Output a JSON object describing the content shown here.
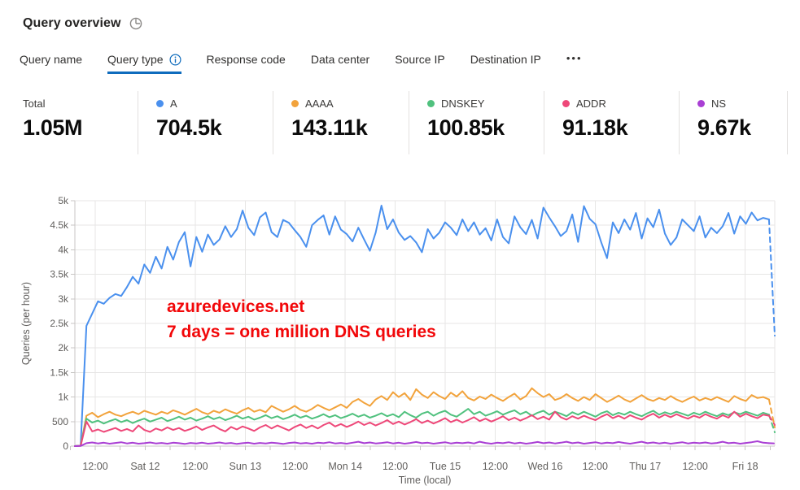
{
  "header": {
    "title": "Query overview"
  },
  "tabs": {
    "items": [
      {
        "label": "Query name",
        "selected": false
      },
      {
        "label": "Query type",
        "selected": true,
        "info_icon": true
      },
      {
        "label": "Response code",
        "selected": false
      },
      {
        "label": "Data center",
        "selected": false
      },
      {
        "label": "Source IP",
        "selected": false
      },
      {
        "label": "Destination IP",
        "selected": false
      }
    ],
    "more_label": "•••",
    "selected_underline_color": "#0f6cbd"
  },
  "stats": {
    "columns": [
      {
        "label": "Total",
        "value": "1.05M",
        "color": null
      },
      {
        "label": "A",
        "value": "704.5k",
        "color": "#4a90ee"
      },
      {
        "label": "AAAA",
        "value": "143.11k",
        "color": "#f2a33c"
      },
      {
        "label": "DNSKEY",
        "value": "100.85k",
        "color": "#50c17e"
      },
      {
        "label": "ADDR",
        "value": "91.18k",
        "color": "#ee4879"
      },
      {
        "label": "NS",
        "value": "9.67k",
        "color": "#a93fd4"
      }
    ]
  },
  "chart_data": {
    "type": "line",
    "title": "",
    "xlabel": "Time (local)",
    "ylabel": "Queries (per hour)",
    "ylim": [
      0,
      5000
    ],
    "y_ticks": [
      "0",
      "500",
      "1k",
      "1.5k",
      "2k",
      "2.5k",
      "3k",
      "3.5k",
      "4k",
      "4.5k",
      "5k"
    ],
    "x_ticks": [
      "12:00",
      "Sat 12",
      "12:00",
      "Sun 13",
      "12:00",
      "Mon 14",
      "12:00",
      "Tue 15",
      "12:00",
      "Wed 16",
      "12:00",
      "Thu 17",
      "12:00",
      "Fri 18"
    ],
    "grid": true,
    "legend_position": "top-stats-row",
    "last_segment_dashed": true,
    "annotation": {
      "lines": [
        "azuredevices.net",
        "7 days = one million DNS queries"
      ],
      "color": "#f20709"
    },
    "series": [
      {
        "name": "A",
        "color": "#4a90ee",
        "values": [
          0,
          20,
          2450,
          2700,
          2950,
          2900,
          3020,
          3100,
          3060,
          3240,
          3450,
          3310,
          3700,
          3530,
          3860,
          3620,
          4060,
          3800,
          4160,
          4360,
          3660,
          4260,
          3960,
          4310,
          4100,
          4210,
          4480,
          4260,
          4420,
          4800,
          4450,
          4300,
          4660,
          4760,
          4360,
          4260,
          4610,
          4550,
          4400,
          4260,
          4060,
          4500,
          4610,
          4700,
          4310,
          4680,
          4410,
          4320,
          4170,
          4450,
          4210,
          3980,
          4350,
          4900,
          4420,
          4620,
          4350,
          4200,
          4280,
          4150,
          3950,
          4420,
          4230,
          4350,
          4560,
          4450,
          4300,
          4620,
          4380,
          4560,
          4310,
          4440,
          4190,
          4620,
          4260,
          4130,
          4680,
          4460,
          4320,
          4610,
          4230,
          4860,
          4660,
          4480,
          4280,
          4380,
          4720,
          4160,
          4890,
          4630,
          4520,
          4150,
          3830,
          4560,
          4340,
          4620,
          4410,
          4750,
          4230,
          4640,
          4460,
          4820,
          4330,
          4100,
          4250,
          4620,
          4500,
          4380,
          4680,
          4250,
          4450,
          4340,
          4480,
          4750,
          4330,
          4680,
          4530,
          4760,
          4600,
          4650,
          4620,
          2250
        ]
      },
      {
        "name": "AAAA",
        "color": "#f2a33c",
        "values": [
          0,
          10,
          620,
          680,
          590,
          650,
          700,
          640,
          610,
          660,
          700,
          650,
          720,
          680,
          640,
          700,
          660,
          730,
          690,
          640,
          700,
          760,
          690,
          650,
          720,
          680,
          750,
          700,
          660,
          730,
          780,
          700,
          740,
          690,
          820,
          760,
          700,
          750,
          820,
          740,
          700,
          760,
          840,
          780,
          730,
          790,
          850,
          780,
          900,
          960,
          880,
          820,
          950,
          1020,
          940,
          1100,
          1000,
          1080,
          940,
          1160,
          1050,
          980,
          1100,
          1020,
          960,
          1090,
          1010,
          1120,
          980,
          930,
          1010,
          960,
          1050,
          980,
          920,
          1000,
          1070,
          950,
          1020,
          1180,
          1080,
          1000,
          1060,
          940,
          980,
          1060,
          980,
          920,
          1000,
          940,
          1060,
          980,
          900,
          960,
          1030,
          950,
          900,
          970,
          1040,
          960,
          920,
          980,
          940,
          1020,
          950,
          900,
          960,
          1010,
          930,
          980,
          940,
          1000,
          950,
          900,
          1020,
          960,
          920,
          1040,
          980,
          1000,
          950,
          380
        ]
      },
      {
        "name": "DNSKEY",
        "color": "#50c17e",
        "values": [
          0,
          8,
          560,
          480,
          520,
          460,
          510,
          550,
          490,
          530,
          470,
          520,
          560,
          500,
          540,
          580,
          510,
          550,
          600,
          540,
          580,
          520,
          560,
          610,
          550,
          590,
          530,
          570,
          620,
          560,
          600,
          540,
          580,
          630,
          570,
          610,
          550,
          590,
          640,
          580,
          620,
          560,
          600,
          650,
          590,
          630,
          570,
          610,
          660,
          600,
          640,
          580,
          620,
          670,
          610,
          650,
          590,
          700,
          630,
          580,
          660,
          700,
          620,
          680,
          720,
          640,
          600,
          680,
          760,
          650,
          700,
          620,
          660,
          710,
          640,
          690,
          730,
          650,
          700,
          620,
          680,
          720,
          640,
          700,
          660,
          610,
          690,
          640,
          700,
          650,
          600,
          670,
          710,
          630,
          680,
          640,
          700,
          650,
          610,
          670,
          720,
          640,
          690,
          650,
          700,
          660,
          620,
          680,
          640,
          700,
          650,
          610,
          670,
          630,
          690,
          650,
          700,
          660,
          620,
          680,
          640,
          280
        ]
      },
      {
        "name": "ADDR",
        "color": "#ee4879",
        "values": [
          0,
          6,
          500,
          300,
          340,
          290,
          330,
          370,
          310,
          350,
          300,
          420,
          330,
          290,
          360,
          320,
          380,
          330,
          370,
          310,
          350,
          400,
          330,
          380,
          420,
          350,
          300,
          390,
          340,
          400,
          360,
          310,
          380,
          430,
          360,
          420,
          370,
          320,
          390,
          440,
          370,
          420,
          360,
          430,
          480,
          400,
          450,
          390,
          440,
          500,
          430,
          480,
          420,
          470,
          530,
          450,
          500,
          440,
          490,
          550,
          470,
          520,
          460,
          510,
          570,
          490,
          540,
          480,
          530,
          590,
          510,
          560,
          500,
          550,
          610,
          530,
          580,
          520,
          570,
          630,
          550,
          600,
          540,
          700,
          590,
          540,
          610,
          560,
          620,
          570,
          530,
          600,
          650,
          570,
          620,
          560,
          630,
          580,
          540,
          610,
          660,
          580,
          640,
          590,
          650,
          600,
          560,
          620,
          580,
          650,
          600,
          560,
          630,
          580,
          700,
          600,
          660,
          610,
          570,
          640,
          620,
          430
        ]
      },
      {
        "name": "NS",
        "color": "#a93fd4",
        "values": [
          0,
          4,
          60,
          75,
          55,
          70,
          50,
          65,
          80,
          55,
          70,
          50,
          60,
          75,
          55,
          65,
          50,
          70,
          60,
          45,
          65,
          55,
          70,
          50,
          60,
          75,
          55,
          65,
          45,
          60,
          70,
          50,
          65,
          55,
          70,
          60,
          45,
          65,
          75,
          55,
          65,
          50,
          70,
          60,
          80,
          55,
          65,
          50,
          70,
          90,
          60,
          75,
          55,
          65,
          80,
          55,
          70,
          50,
          65,
          85,
          60,
          70,
          50,
          65,
          80,
          55,
          70,
          60,
          75,
          55,
          90,
          65,
          50,
          70,
          60,
          80,
          55,
          70,
          50,
          65,
          85,
          60,
          75,
          55,
          70,
          90,
          60,
          75,
          50,
          65,
          80,
          55,
          70,
          60,
          85,
          65,
          50,
          70,
          90,
          60,
          75,
          55,
          70,
          50,
          65,
          80,
          55,
          70,
          60,
          75,
          55,
          65,
          90,
          60,
          70,
          50,
          65,
          80,
          100,
          70,
          60,
          55
        ]
      }
    ]
  }
}
